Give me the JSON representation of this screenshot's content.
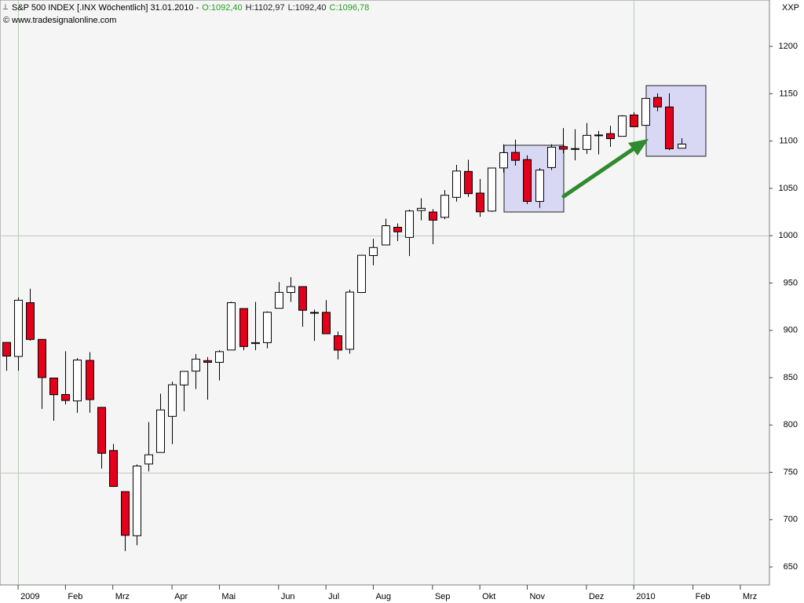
{
  "chart_data": {
    "type": "candlestick",
    "title": "S&P 500 INDEX [.INX  Wöchentlich] 31.01.2010 -",
    "ohlc_text": [
      "O:1092,40",
      "H:1102,97",
      "L:1092,40",
      "C:1096,78"
    ],
    "source": "© www.tradesignalonline.com",
    "y_axis_label": "XXP",
    "categories": [
      null,
      null,
      null,
      null,
      null,
      null,
      null,
      null,
      null,
      null,
      null,
      null,
      null,
      null,
      null,
      null,
      null,
      null,
      null,
      null,
      null,
      null,
      null,
      null,
      null,
      null,
      null,
      null,
      null,
      null,
      null,
      null,
      null,
      null,
      null,
      null,
      null,
      null,
      null,
      null,
      null,
      null,
      null,
      null,
      null,
      null,
      null,
      null,
      null,
      null,
      null,
      null,
      null,
      null,
      null,
      null,
      null,
      null
    ],
    "open": [
      887.2,
      872.4,
      929.2,
      890.4,
      849.6,
      832.2,
      825.4,
      868.2,
      818.6,
      773.0,
      729.6,
      683.0,
      758.8,
      771.0,
      809.1,
      842.3,
      856.9,
      868.0,
      866.2,
      879.2,
      923.0,
      886.0,
      887.0,
      923.3,
      940.0,
      946.2,
      918.1,
      919.0,
      894.3,
      880.0,
      940.0,
      979.0,
      990.2,
      1008.9,
      998.2,
      1026.6,
      1025.0,
      1019.4,
      1040.5,
      1067.9,
      1045.0,
      1026.0,
      1071.6,
      1088.0,
      1080.4,
      1036.2,
      1072.0,
      1094.1,
      1092.0,
      1091.1,
      1106.0,
      1107.8,
      1105.0,
      1127.5,
      1116.6,
      1146.0,
      1136.0,
      1092.4
    ],
    "high": [
      887.4,
      934.7,
      943.9,
      890.4,
      849.6,
      877.9,
      870.7,
      877.0,
      818.6,
      780.0,
      729.6,
      758.3,
      803.0,
      833.0,
      845.6,
      856.9,
      875.0,
      871.8,
      879.0,
      930.2,
      923.0,
      930.0,
      920.0,
      951.0,
      956.2,
      946.2,
      922.0,
      931.9,
      898.7,
      943.0,
      979.8,
      996.7,
      1018.0,
      1012.9,
      1027.6,
      1039.5,
      1028.0,
      1048.2,
      1074.8,
      1080.2,
      1060.0,
      1071.5,
      1096.6,
      1101.4,
      1085.0,
      1071.5,
      1096.6,
      1113.7,
      1112.4,
      1119.1,
      1110.7,
      1116.2,
      1127.5,
      1130.4,
      1145.4,
      1150.4,
      1150.5,
      1102.97
    ],
    "low": [
      857.3,
      857.3,
      889.0,
      817.0,
      804.5,
      821.7,
      812.9,
      813.0,
      754.0,
      734.5,
      666.8,
      672.9,
      751.0,
      771.0,
      779.8,
      814.5,
      838.0,
      826.8,
      847.1,
      879.0,
      878.9,
      879.0,
      881.0,
      923.0,
      930.0,
      903.8,
      888.9,
      896.0,
      869.3,
      875.3,
      940.0,
      968.7,
      990.2,
      994.3,
      978.5,
      1016.2,
      991.0,
      1017.5,
      1036.0,
      1041.0,
      1019.9,
      1025.0,
      1066.7,
      1074.0,
      1033.4,
      1029.4,
      1069.3,
      1087.0,
      1079.6,
      1086.3,
      1085.9,
      1093.9,
      1105.0,
      1114.8,
      1116.6,
      1131.4,
      1090.2,
      1092.4
    ],
    "close": [
      872.8,
      931.8,
      890.4,
      850.1,
      832.0,
      825.9,
      868.6,
      826.8,
      770.1,
      735.1,
      683.4,
      756.6,
      768.5,
      815.9,
      842.5,
      856.6,
      869.6,
      866.2,
      877.5,
      929.2,
      882.9,
      887.0,
      919.1,
      940.1,
      946.2,
      921.2,
      918.9,
      896.4,
      879.1,
      940.4,
      979.3,
      987.5,
      1010.5,
      1004.1,
      1026.1,
      1028.9,
      1016.4,
      1042.7,
      1068.3,
      1044.4,
      1025.2,
      1071.5,
      1087.7,
      1079.6,
      1036.2,
      1069.3,
      1093.5,
      1091.4,
      1091.5,
      1106.0,
      1106.4,
      1102.5,
      1126.5,
      1115.1,
      1145.0,
      1136.0,
      1091.8,
      1096.78
    ],
    "up_color": "#ffffff",
    "down_color": "#e3001b",
    "xlim": [
      -0.53,
      64.46
    ],
    "xticks": [
      {
        "value": 1,
        "label": "2009"
      },
      {
        "value": 5,
        "label": "Feb"
      },
      {
        "value": 9,
        "label": "Mrz"
      },
      {
        "value": 14,
        "label": "Apr"
      },
      {
        "value": 18,
        "label": "Mai"
      },
      {
        "value": 23,
        "label": "Jun"
      },
      {
        "value": 27,
        "label": "Jul"
      },
      {
        "value": 31,
        "label": "Aug"
      },
      {
        "value": 36,
        "label": "Sep"
      },
      {
        "value": 40,
        "label": "Okt"
      },
      {
        "value": 44,
        "label": "Nov"
      },
      {
        "value": 49,
        "label": "Dez"
      },
      {
        "value": 53,
        "label": "2010"
      },
      {
        "value": 58,
        "label": "Feb"
      },
      {
        "value": 62,
        "label": "Mrz"
      }
    ],
    "ylim": [
      631,
      1249
    ],
    "yticks": [
      650,
      700,
      750,
      800,
      850,
      900,
      950,
      1000,
      1050,
      1100,
      1150,
      1200
    ],
    "grid_x": [
      1,
      53
    ],
    "grid_y": [
      750,
      1000
    ]
  }
}
